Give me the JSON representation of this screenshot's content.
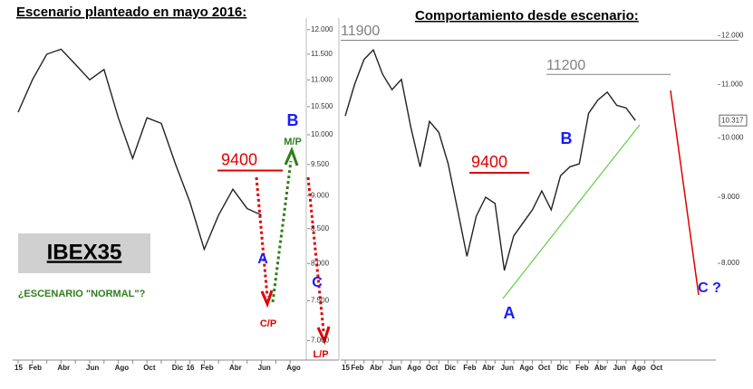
{
  "chart_data": [
    {
      "type": "line",
      "title": "Escenario planteado en mayo 2016:",
      "categories": [
        "15",
        "Feb",
        null,
        "Abr",
        null,
        "Jun",
        null,
        "Ago",
        null,
        "Oct",
        null,
        "Dic",
        "16",
        "Feb",
        null,
        "Abr",
        null,
        "Jun",
        null,
        "Ago"
      ],
      "values": [
        10400,
        11000,
        11500,
        11600,
        11300,
        11000,
        11200,
        10300,
        9600,
        10300,
        10200,
        9500,
        8900,
        8200,
        8700,
        9100,
        8800,
        8700,
        null,
        null
      ],
      "color": "#222222",
      "yscale": "log",
      "ylim": [
        6800,
        12300
      ],
      "yticks": [
        {
          "value": 12000,
          "label": "12.000"
        },
        {
          "value": 11500,
          "label": "11.500"
        },
        {
          "value": 11000,
          "label": "11.000"
        },
        {
          "value": 10500,
          "label": "10.500"
        },
        {
          "value": 10000,
          "label": "10.000"
        },
        {
          "value": 9500,
          "label": "9.500"
        },
        {
          "value": 9000,
          "label": "9.000"
        },
        {
          "value": 8500,
          "label": "8.500"
        },
        {
          "value": 8000,
          "label": "8.000"
        },
        {
          "value": 7500,
          "label": "7.500"
        },
        {
          "value": 7000,
          "label": "7.000"
        }
      ],
      "levels": [
        9400
      ],
      "level_colors": [
        "#e00000"
      ],
      "annotations": [
        "B",
        "M/P",
        "A",
        "C/P",
        "C",
        "L/P",
        "IBEX35",
        "¿ESCENARIO \"NORMAL\"?"
      ]
    },
    {
      "type": "line",
      "title": "Comportamiento desde escenario:",
      "categories": [
        "15",
        "Feb",
        null,
        "Abr",
        null,
        "Jun",
        null,
        "Ago",
        null,
        "Oct",
        null,
        "Dic",
        null,
        "Feb",
        null,
        "Abr",
        null,
        "Jun",
        null,
        "Ago",
        null,
        "Oct",
        null,
        "Dic",
        null,
        "Feb",
        null,
        "Abr",
        null,
        "Jun",
        null,
        "Ago",
        null,
        "Oct"
      ],
      "values": [
        10400,
        11000,
        11500,
        11700,
        11200,
        10900,
        11100,
        10200,
        9500,
        10300,
        10100,
        9550,
        8800,
        8100,
        8700,
        9000,
        8900,
        7900,
        8400,
        8600,
        8800,
        9100,
        8800,
        9350,
        9500,
        9550,
        10450,
        10700,
        10850,
        10600,
        10550,
        10317,
        null,
        null
      ],
      "color": "#222222",
      "yscale": "log",
      "ylim": [
        6800,
        12400
      ],
      "yticks": [
        {
          "value": 12000,
          "label": "12.000"
        },
        {
          "value": 11000,
          "label": "11.000"
        },
        {
          "value": 10000,
          "label": "10.000"
        },
        {
          "value": 9000,
          "label": "9.000"
        },
        {
          "value": 8000,
          "label": "8.000"
        }
      ],
      "last": {
        "value": 10317,
        "label": "10.317"
      },
      "levels": [
        11900,
        11200,
        9400
      ],
      "level_colors": [
        "#808080",
        "#808080",
        "#e00000"
      ],
      "annotations": [
        "B",
        "A",
        "C ?"
      ]
    }
  ]
}
